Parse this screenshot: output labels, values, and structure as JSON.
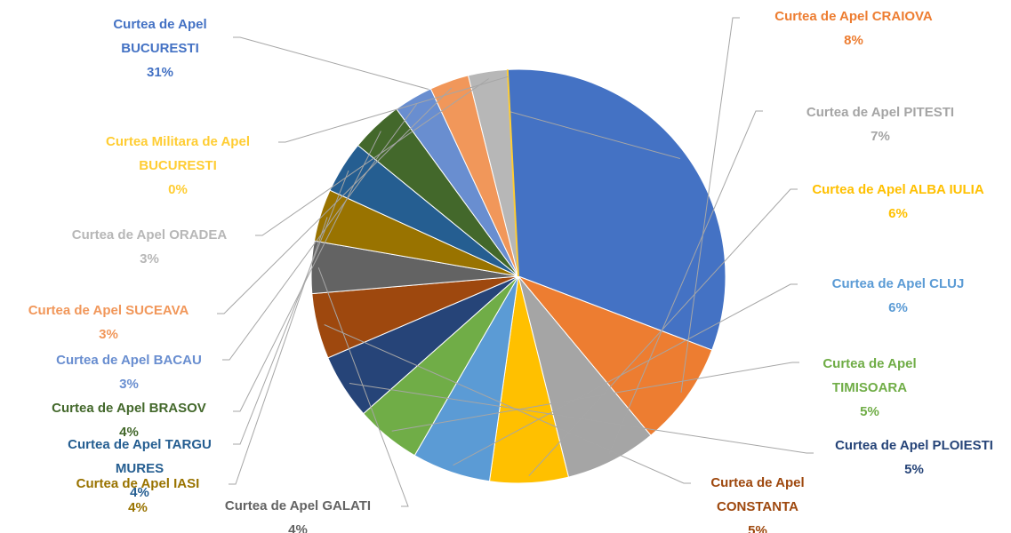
{
  "chart_data": {
    "type": "pie",
    "categories": [
      "Curtea de Apel BUCURESTI",
      "Curtea de Apel CRAIOVA",
      "Curtea de Apel PITESTI",
      "Curtea de Apel ALBA IULIA",
      "Curtea de Apel CLUJ",
      "Curtea de Apel TIMISOARA",
      "Curtea de Apel PLOIESTI",
      "Curtea de Apel CONSTANTA",
      "Curtea de Apel GALATI",
      "Curtea de Apel IASI",
      "Curtea de Apel TARGU MURES",
      "Curtea de Apel BRASOV",
      "Curtea de Apel BACAU",
      "Curtea de Apel SUCEAVA",
      "Curtea de Apel ORADEA",
      "Curtea Militara de Apel BUCURESTI"
    ],
    "values": [
      31,
      8,
      7,
      6,
      6,
      5,
      5,
      5,
      4,
      4,
      4,
      4,
      3,
      3,
      3,
      0
    ],
    "value_labels": [
      "31%",
      "8%",
      "7%",
      "6%",
      "6%",
      "5%",
      "5%",
      "5%",
      "4%",
      "4%",
      "4%",
      "4%",
      "3%",
      "3%",
      "3%",
      "0%"
    ],
    "colors": [
      "#4472c4",
      "#ed7d31",
      "#a5a5a5",
      "#ffc000",
      "#5b9bd5",
      "#70ad47",
      "#264478",
      "#9e480e",
      "#636363",
      "#997300",
      "#255e91",
      "#43682b",
      "#698ed0",
      "#f1975a",
      "#b7b7b7",
      "#ffcd33"
    ]
  }
}
